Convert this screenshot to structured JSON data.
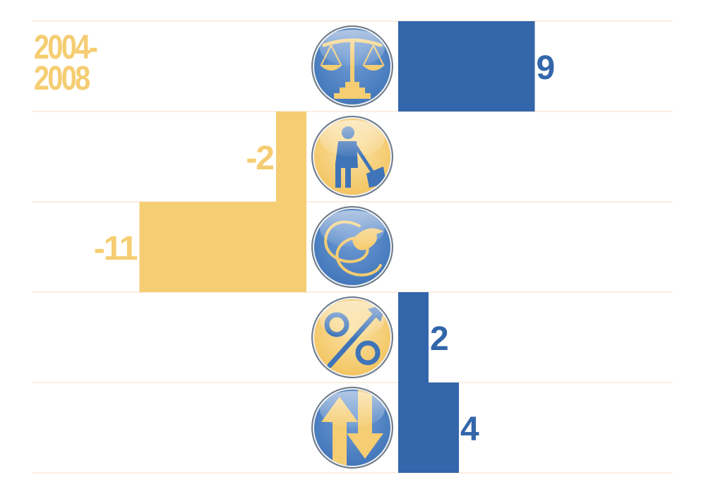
{
  "period_label_lines": [
    "2004-",
    "2008"
  ],
  "chart_data": {
    "type": "bar",
    "orientation": "horizontal",
    "title": "",
    "xlabel": "",
    "ylabel": "",
    "categories": [
      "scales-icon",
      "worker-shovel-icon",
      "dove-icon",
      "percent-arrow-icon",
      "up-down-arrows-icon"
    ],
    "values": [
      9,
      -2,
      -11,
      2,
      4
    ],
    "value_labels": [
      "9",
      "-2",
      "-11",
      "2",
      "4"
    ],
    "xlim": [
      -11,
      11
    ],
    "grid": true
  },
  "colors": {
    "positive_bar": "#3366aa",
    "negative_bar": "#f5cd72",
    "positive_label": "#3366aa",
    "negative_label": "#f5cd72",
    "grid_line": "#f7dcc4",
    "icon_blue": "#3f74b8",
    "icon_gold": "#f5cd72",
    "icon_rim": "#6d7a88"
  }
}
